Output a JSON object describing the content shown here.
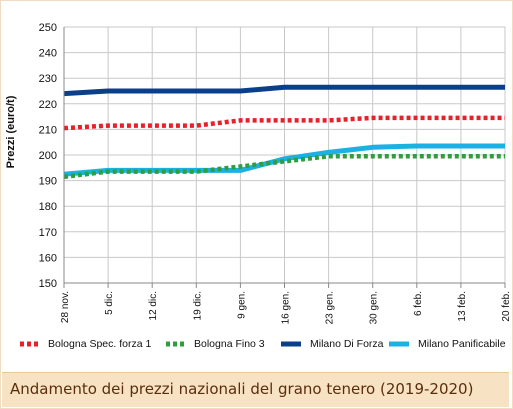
{
  "chart_data": {
    "type": "line",
    "title": "Andamento dei prezzi nazionali del grano tenero (2019-2020)",
    "ylabel": "Prezzi (euro/t)",
    "xlabel": "",
    "ylim": [
      150,
      250
    ],
    "yticks": [
      150,
      160,
      170,
      180,
      190,
      200,
      210,
      220,
      230,
      240,
      250
    ],
    "grid": true,
    "legend_position": "bottom",
    "categories": [
      "28 nov.",
      "5 dic.",
      "12 dic.",
      "19 dic.",
      "9 gen.",
      "16 gen.",
      "23 gen.",
      "30 gen.",
      "6 feb.",
      "13 feb.",
      "20 feb."
    ],
    "series": [
      {
        "name": "Bologna Spec. forza 1",
        "color": "#e8202a",
        "style": "dotted",
        "values": [
          210.5,
          211.5,
          211.5,
          211.5,
          213.5,
          213.5,
          213.5,
          214.5,
          214.5,
          214.5,
          214.5
        ]
      },
      {
        "name": "Bologna Fino 3",
        "color": "#2e9e3e",
        "style": "dotted",
        "values": [
          191.5,
          193.5,
          193.5,
          193.5,
          195.5,
          197.5,
          199.5,
          199.5,
          199.5,
          199.5,
          199.5
        ]
      },
      {
        "name": "Milano Di Forza",
        "color": "#0b3f8c",
        "style": "solid",
        "values": [
          224,
          225,
          225,
          225,
          225,
          226.5,
          226.5,
          226.5,
          226.5,
          226.5,
          226.5
        ]
      },
      {
        "name": "Milano Panificabile",
        "color": "#1cb1e3",
        "style": "solid",
        "values": [
          192.5,
          194,
          194,
          194,
          194,
          198.5,
          201,
          203,
          203.5,
          203.5,
          203.5
        ]
      }
    ]
  }
}
